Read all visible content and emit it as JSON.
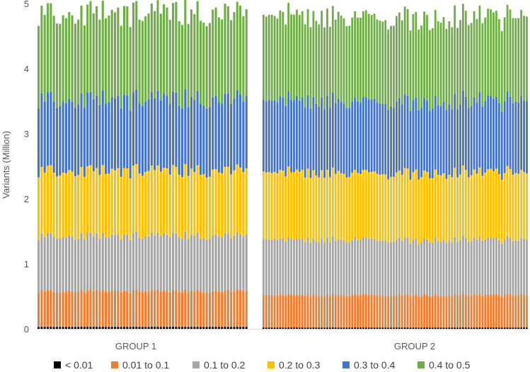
{
  "chart_data": {
    "type": "bar",
    "stacked": true,
    "ylabel": "Variants (Million)",
    "ylim": [
      0,
      5
    ],
    "yticks": [
      "0",
      "1",
      "2",
      "3",
      "4",
      "5"
    ],
    "grid": false,
    "legend_placement": "bottom",
    "groups": [
      {
        "name": "GROUP 1",
        "samples": 69,
        "series_values": {
          "< 0.01": 0.03,
          "0.01 to 0.1": 0.55,
          "0.1 to 0.2": 0.85,
          "0.2 to 0.3": 1.0,
          "0.3 to 0.4": 1.1,
          "0.4 to 0.5": 1.33
        }
      },
      {
        "name": "GROUP 2",
        "samples": 96,
        "series_values": {
          "< 0.01": 0.02,
          "0.01 to 0.1": 0.5,
          "0.1 to 0.2": 0.85,
          "0.2 to 0.3": 1.03,
          "0.3 to 0.4": 1.1,
          "0.4 to 0.5": 1.3
        }
      }
    ],
    "series": [
      {
        "name": "< 0.01",
        "color": "#000000"
      },
      {
        "name": "0.01 to 0.1",
        "color": "#ED7D31"
      },
      {
        "name": "0.1 to 0.2",
        "color": "#A5A5A5"
      },
      {
        "name": "0.2 to 0.3",
        "color": "#FFC000"
      },
      {
        "name": "0.3 to 0.4",
        "color": "#4472C4"
      },
      {
        "name": "0.4 to 0.5",
        "color": "#70AD47"
      }
    ]
  }
}
